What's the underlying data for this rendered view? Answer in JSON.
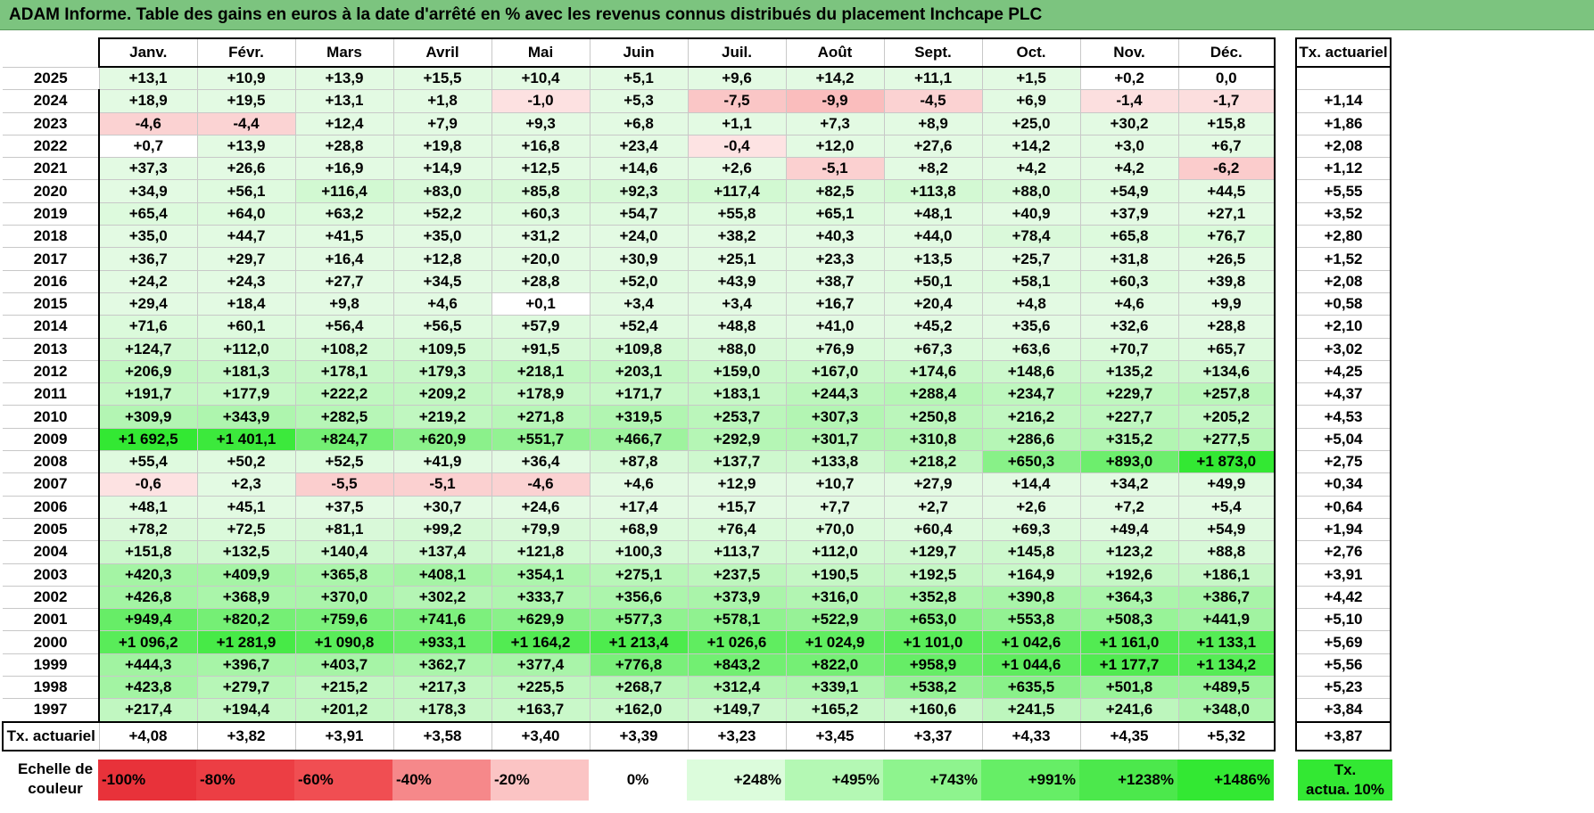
{
  "title": "ADAM Informe. Table des gains en euros à la date d'arrêté en % avec les revenus connus distribués du placement Inchcape PLC",
  "months": [
    "Janv.",
    "Févr.",
    "Mars",
    "Avril",
    "Mai",
    "Juin",
    "Juil.",
    "Août",
    "Sept.",
    "Oct.",
    "Nov.",
    "Déc."
  ],
  "tx_header": "Tx. actuariel",
  "rows": [
    {
      "year": "2025",
      "values": [
        "+13,1",
        "+10,9",
        "+13,9",
        "+15,5",
        "+10,4",
        "+5,1",
        "+9,6",
        "+14,2",
        "+11,1",
        "+1,5",
        "+0,2",
        "0,0"
      ],
      "tx": ""
    },
    {
      "year": "2024",
      "values": [
        "+18,9",
        "+19,5",
        "+13,1",
        "+1,8",
        "-1,0",
        "+5,3",
        "-7,5",
        "-9,9",
        "-4,5",
        "+6,9",
        "-1,4",
        "-1,7"
      ],
      "tx": "+1,14"
    },
    {
      "year": "2023",
      "values": [
        "-4,6",
        "-4,4",
        "+12,4",
        "+7,9",
        "+9,3",
        "+6,8",
        "+1,1",
        "+7,3",
        "+8,9",
        "+25,0",
        "+30,2",
        "+15,8"
      ],
      "tx": "+1,86"
    },
    {
      "year": "2022",
      "values": [
        "+0,7",
        "+13,9",
        "+28,8",
        "+19,8",
        "+16,8",
        "+23,4",
        "-0,4",
        "+12,0",
        "+27,6",
        "+14,2",
        "+3,0",
        "+6,7"
      ],
      "tx": "+2,08"
    },
    {
      "year": "2021",
      "values": [
        "+37,3",
        "+26,6",
        "+16,9",
        "+14,9",
        "+12,5",
        "+14,6",
        "+2,6",
        "-5,1",
        "+8,2",
        "+4,2",
        "+4,2",
        "-6,2"
      ],
      "tx": "+1,12"
    },
    {
      "year": "2020",
      "values": [
        "+34,9",
        "+56,1",
        "+116,4",
        "+83,0",
        "+85,8",
        "+92,3",
        "+117,4",
        "+82,5",
        "+113,8",
        "+88,0",
        "+54,9",
        "+44,5"
      ],
      "tx": "+5,55"
    },
    {
      "year": "2019",
      "values": [
        "+65,4",
        "+64,0",
        "+63,2",
        "+52,2",
        "+60,3",
        "+54,7",
        "+55,8",
        "+65,1",
        "+48,1",
        "+40,9",
        "+37,9",
        "+27,1"
      ],
      "tx": "+3,52"
    },
    {
      "year": "2018",
      "values": [
        "+35,0",
        "+44,7",
        "+41,5",
        "+35,0",
        "+31,2",
        "+24,0",
        "+38,2",
        "+40,3",
        "+44,0",
        "+78,4",
        "+65,8",
        "+76,7"
      ],
      "tx": "+2,80"
    },
    {
      "year": "2017",
      "values": [
        "+36,7",
        "+29,7",
        "+16,4",
        "+12,8",
        "+20,0",
        "+30,9",
        "+25,1",
        "+23,3",
        "+13,5",
        "+25,7",
        "+31,8",
        "+26,5"
      ],
      "tx": "+1,52"
    },
    {
      "year": "2016",
      "values": [
        "+24,2",
        "+24,3",
        "+27,7",
        "+34,5",
        "+28,8",
        "+52,0",
        "+43,9",
        "+38,7",
        "+50,1",
        "+58,1",
        "+60,3",
        "+39,8"
      ],
      "tx": "+2,08"
    },
    {
      "year": "2015",
      "values": [
        "+29,4",
        "+18,4",
        "+9,8",
        "+4,6",
        "+0,1",
        "+3,4",
        "+3,4",
        "+16,7",
        "+20,4",
        "+4,8",
        "+4,6",
        "+9,9"
      ],
      "tx": "+0,58"
    },
    {
      "year": "2014",
      "values": [
        "+71,6",
        "+60,1",
        "+56,4",
        "+56,5",
        "+57,9",
        "+52,4",
        "+48,8",
        "+41,0",
        "+45,2",
        "+35,6",
        "+32,6",
        "+28,8"
      ],
      "tx": "+2,10"
    },
    {
      "year": "2013",
      "values": [
        "+124,7",
        "+112,0",
        "+108,2",
        "+109,5",
        "+91,5",
        "+109,8",
        "+88,0",
        "+76,9",
        "+67,3",
        "+63,6",
        "+70,7",
        "+65,7"
      ],
      "tx": "+3,02"
    },
    {
      "year": "2012",
      "values": [
        "+206,9",
        "+181,3",
        "+178,1",
        "+179,3",
        "+218,1",
        "+203,1",
        "+159,0",
        "+167,0",
        "+174,6",
        "+148,6",
        "+135,2",
        "+134,6"
      ],
      "tx": "+4,25"
    },
    {
      "year": "2011",
      "values": [
        "+191,7",
        "+177,9",
        "+222,2",
        "+209,2",
        "+178,9",
        "+171,7",
        "+183,1",
        "+244,3",
        "+288,4",
        "+234,7",
        "+229,7",
        "+257,8"
      ],
      "tx": "+4,37"
    },
    {
      "year": "2010",
      "values": [
        "+309,9",
        "+343,9",
        "+282,5",
        "+219,2",
        "+271,8",
        "+319,5",
        "+253,7",
        "+307,3",
        "+250,8",
        "+216,2",
        "+227,7",
        "+205,2"
      ],
      "tx": "+4,53"
    },
    {
      "year": "2009",
      "values": [
        "+1 692,5",
        "+1 401,1",
        "+824,7",
        "+620,9",
        "+551,7",
        "+466,7",
        "+292,9",
        "+301,7",
        "+310,8",
        "+286,6",
        "+315,2",
        "+277,5"
      ],
      "tx": "+5,04"
    },
    {
      "year": "2008",
      "values": [
        "+55,4",
        "+50,2",
        "+52,5",
        "+41,9",
        "+36,4",
        "+87,8",
        "+137,7",
        "+133,8",
        "+218,2",
        "+650,3",
        "+893,0",
        "+1 873,0"
      ],
      "tx": "+2,75"
    },
    {
      "year": "2007",
      "values": [
        "-0,6",
        "+2,3",
        "-5,5",
        "-5,1",
        "-4,6",
        "+4,6",
        "+12,9",
        "+10,7",
        "+27,9",
        "+14,4",
        "+34,2",
        "+49,9"
      ],
      "tx": "+0,34"
    },
    {
      "year": "2006",
      "values": [
        "+48,1",
        "+45,1",
        "+37,5",
        "+30,7",
        "+24,6",
        "+17,4",
        "+15,7",
        "+7,7",
        "+2,7",
        "+2,6",
        "+7,2",
        "+5,4"
      ],
      "tx": "+0,64"
    },
    {
      "year": "2005",
      "values": [
        "+78,2",
        "+72,5",
        "+81,1",
        "+99,2",
        "+79,9",
        "+68,9",
        "+76,4",
        "+70,0",
        "+60,4",
        "+69,3",
        "+49,4",
        "+54,9"
      ],
      "tx": "+1,94"
    },
    {
      "year": "2004",
      "values": [
        "+151,8",
        "+132,5",
        "+140,4",
        "+137,4",
        "+121,8",
        "+100,3",
        "+113,7",
        "+112,0",
        "+129,7",
        "+145,8",
        "+123,2",
        "+88,8"
      ],
      "tx": "+2,76"
    },
    {
      "year": "2003",
      "values": [
        "+420,3",
        "+409,9",
        "+365,8",
        "+408,1",
        "+354,1",
        "+275,1",
        "+237,5",
        "+190,5",
        "+192,5",
        "+164,9",
        "+192,6",
        "+186,1"
      ],
      "tx": "+3,91"
    },
    {
      "year": "2002",
      "values": [
        "+426,8",
        "+368,9",
        "+370,0",
        "+302,2",
        "+333,7",
        "+356,6",
        "+373,9",
        "+316,0",
        "+352,8",
        "+390,8",
        "+364,3",
        "+386,7"
      ],
      "tx": "+4,42"
    },
    {
      "year": "2001",
      "values": [
        "+949,4",
        "+820,2",
        "+759,6",
        "+741,6",
        "+629,9",
        "+577,3",
        "+578,1",
        "+522,9",
        "+653,0",
        "+553,8",
        "+508,3",
        "+441,9"
      ],
      "tx": "+5,10"
    },
    {
      "year": "2000",
      "values": [
        "+1 096,2",
        "+1 281,9",
        "+1 090,8",
        "+933,1",
        "+1 164,2",
        "+1 213,4",
        "+1 026,6",
        "+1 024,9",
        "+1 101,0",
        "+1 042,6",
        "+1 161,0",
        "+1 133,1"
      ],
      "tx": "+5,69"
    },
    {
      "year": "1999",
      "values": [
        "+444,3",
        "+396,7",
        "+403,7",
        "+362,7",
        "+377,4",
        "+776,8",
        "+843,2",
        "+822,0",
        "+958,9",
        "+1 044,6",
        "+1 177,7",
        "+1 134,2"
      ],
      "tx": "+5,56"
    },
    {
      "year": "1998",
      "values": [
        "+423,8",
        "+279,7",
        "+215,2",
        "+217,3",
        "+225,5",
        "+268,7",
        "+312,4",
        "+339,1",
        "+538,2",
        "+635,5",
        "+501,8",
        "+489,5"
      ],
      "tx": "+5,23"
    },
    {
      "year": "1997",
      "values": [
        "+217,4",
        "+194,4",
        "+201,2",
        "+178,3",
        "+163,7",
        "+162,0",
        "+149,7",
        "+165,2",
        "+160,6",
        "+241,5",
        "+241,6",
        "+348,0"
      ],
      "tx": "+3,84"
    }
  ],
  "footer": {
    "label": "Tx. actuariel",
    "values": [
      "+4,08",
      "+3,82",
      "+3,91",
      "+3,58",
      "+3,40",
      "+3,39",
      "+3,23",
      "+3,45",
      "+3,37",
      "+4,33",
      "+4,35",
      "+5,32"
    ],
    "tx": "+3,87"
  },
  "legend": {
    "label_line1": "Echelle de",
    "label_line2": "couleur",
    "swatches": [
      {
        "text": "-100%",
        "color": "#e8323a",
        "align": "left"
      },
      {
        "text": "-80%",
        "color": "#ec3e44",
        "align": "left"
      },
      {
        "text": "-60%",
        "color": "#f04e52",
        "align": "left"
      },
      {
        "text": "-40%",
        "color": "#f6888a",
        "align": "left"
      },
      {
        "text": "-20%",
        "color": "#fbc4c4",
        "align": "left"
      },
      {
        "text": "0%",
        "color": "#ffffff",
        "align": "center"
      },
      {
        "text": "+248%",
        "color": "#dcfcdc",
        "align": "right"
      },
      {
        "text": "+495%",
        "color": "#b4f8b4",
        "align": "right"
      },
      {
        "text": "+743%",
        "color": "#8ef48e",
        "align": "right"
      },
      {
        "text": "+991%",
        "color": "#66ee66",
        "align": "right"
      },
      {
        "text": "+1238%",
        "color": "#4ce84c",
        "align": "right"
      },
      {
        "text": "+1486%",
        "color": "#33e833",
        "align": "right"
      }
    ],
    "tx_line1": "Tx.",
    "tx_line2": "actua. 10%"
  },
  "colors": {
    "title_bg": "#7cc47f",
    "neg_scale": [
      "#ffffff",
      "#fde4e4",
      "#fbd2d2",
      "#f8b8b8"
    ],
    "pos_scale_max": "#33e833"
  }
}
